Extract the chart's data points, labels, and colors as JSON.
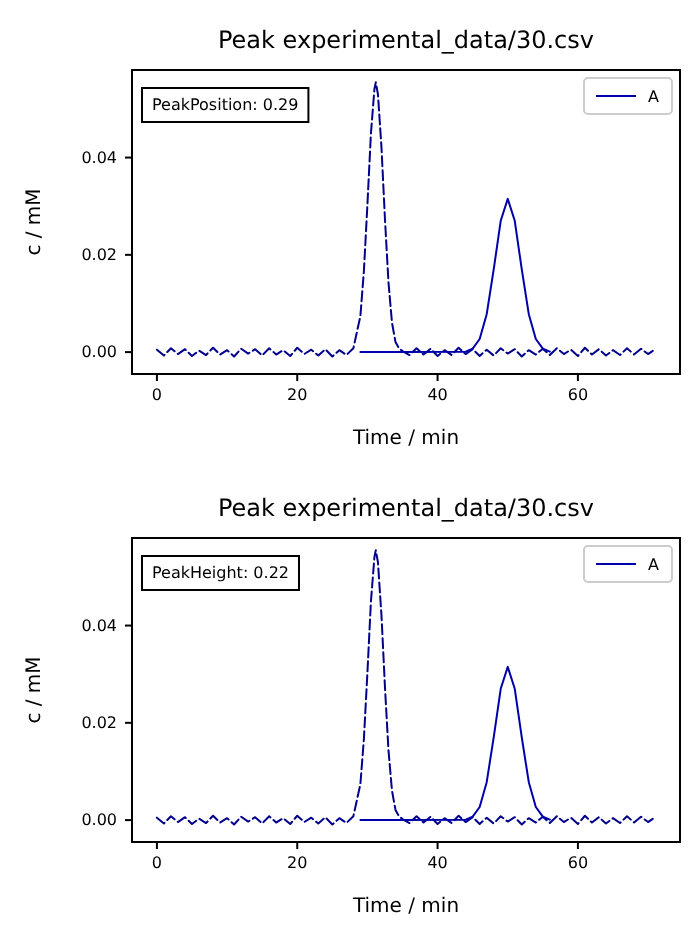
{
  "chart_data": [
    {
      "type": "line",
      "title": "Peak experimental_data/30.csv",
      "xlabel": "Time / min",
      "ylabel": "c / mM",
      "annotations": [
        "PeakPosition: 0.29"
      ],
      "xlim": [
        -3.55,
        74.55
      ],
      "ylim": [
        -0.0045,
        0.058
      ],
      "xticks": [
        0,
        20,
        40,
        60
      ],
      "yticks": [
        {
          "value": 0,
          "label": "0.00"
        },
        {
          "value": 0.02,
          "label": "0.02"
        },
        {
          "value": 0.04,
          "label": "0.04"
        }
      ],
      "grid": false,
      "legend": "top right",
      "marker": "none",
      "series": [
        {
          "color": "#00008b",
          "line_style": "dashed",
          "x": [
            0,
            1,
            2,
            3,
            4,
            5,
            6,
            7,
            8,
            9,
            10,
            11,
            12,
            13,
            14,
            15,
            16,
            17,
            18,
            19,
            20,
            21,
            22,
            23,
            24,
            25,
            26,
            27,
            28,
            29,
            29.5,
            30,
            30.5,
            31,
            31.2,
            31.5,
            32,
            32.5,
            33,
            33.5,
            34,
            34.5,
            35,
            36,
            37,
            38,
            39,
            40,
            41,
            42,
            43,
            44,
            45,
            46,
            47,
            48,
            49,
            50,
            51,
            52,
            53,
            54,
            55,
            56,
            57,
            58,
            59,
            60,
            61,
            62,
            63,
            64,
            65,
            66,
            67,
            68,
            69,
            70,
            71
          ],
          "values": [
            0.0005,
            -0.0007,
            0.0008,
            -0.0004,
            0.0006,
            -0.0008,
            0.0003,
            -0.0006,
            0.0009,
            -0.0005,
            0.0004,
            -0.0009,
            0.0007,
            -0.0003,
            0.0006,
            -0.0007,
            0.0008,
            -0.0005,
            0.0004,
            -0.0008,
            0.0009,
            -0.0004,
            0.0005,
            -0.0007,
            0.0006,
            -0.0009,
            0.0004,
            -0.0006,
            0.0008,
            0.0074,
            0.0167,
            0.0303,
            0.0449,
            0.0541,
            0.0555,
            0.053,
            0.0422,
            0.0274,
            0.0144,
            0.0061,
            0.0021,
            0.0008,
            0.0002,
            -0.0006,
            0.0008,
            -0.0005,
            0.0007,
            -0.0008,
            0.0004,
            -0.0006,
            0.0009,
            -0.0004,
            0.0006,
            -0.0008,
            0.0005,
            -0.0007,
            0.0008,
            -0.0003,
            0.0006,
            -0.0009,
            0.0004,
            -0.0005,
            0.0007,
            -0.0006,
            0.0008,
            -0.0004,
            0.0005,
            -0.0008,
            0.0009,
            -0.0005,
            0.0006,
            -0.0007,
            0.0004,
            -0.0006,
            0.0008,
            -0.0005,
            0.0007,
            -0.0004,
            0.0006
          ]
        },
        {
          "name": "A",
          "color": "#0000aa",
          "line_style": "solid",
          "x": [
            29,
            35,
            44,
            45,
            46,
            47,
            48,
            49,
            50,
            51,
            52,
            53,
            54,
            55,
            56
          ],
          "values": [
            0,
            0,
            0.0001,
            0.0007,
            0.0027,
            0.0078,
            0.017,
            0.027,
            0.0315,
            0.027,
            0.017,
            0.0078,
            0.0027,
            0.0007,
            0.0001
          ]
        }
      ]
    },
    {
      "type": "line",
      "title": "Peak experimental_data/30.csv",
      "xlabel": "Time / min",
      "ylabel": "c / mM",
      "annotations": [
        "PeakHeight: 0.22"
      ],
      "xlim": [
        -3.55,
        74.55
      ],
      "ylim": [
        -0.0045,
        0.058
      ],
      "xticks": [
        0,
        20,
        40,
        60
      ],
      "yticks": [
        {
          "value": 0,
          "label": "0.00"
        },
        {
          "value": 0.02,
          "label": "0.02"
        },
        {
          "value": 0.04,
          "label": "0.04"
        }
      ],
      "grid": false,
      "legend": "top right",
      "marker": "none",
      "series": [
        {
          "color": "#00008b",
          "line_style": "dashed",
          "x": [
            0,
            1,
            2,
            3,
            4,
            5,
            6,
            7,
            8,
            9,
            10,
            11,
            12,
            13,
            14,
            15,
            16,
            17,
            18,
            19,
            20,
            21,
            22,
            23,
            24,
            25,
            26,
            27,
            28,
            29,
            29.5,
            30,
            30.5,
            31,
            31.2,
            31.5,
            32,
            32.5,
            33,
            33.5,
            34,
            34.5,
            35,
            36,
            37,
            38,
            39,
            40,
            41,
            42,
            43,
            44,
            45,
            46,
            47,
            48,
            49,
            50,
            51,
            52,
            53,
            54,
            55,
            56,
            57,
            58,
            59,
            60,
            61,
            62,
            63,
            64,
            65,
            66,
            67,
            68,
            69,
            70,
            71
          ],
          "values": [
            0.0005,
            -0.0007,
            0.0008,
            -0.0004,
            0.0006,
            -0.0008,
            0.0003,
            -0.0006,
            0.0009,
            -0.0005,
            0.0004,
            -0.0009,
            0.0007,
            -0.0003,
            0.0006,
            -0.0007,
            0.0008,
            -0.0005,
            0.0004,
            -0.0008,
            0.0009,
            -0.0004,
            0.0005,
            -0.0007,
            0.0006,
            -0.0009,
            0.0004,
            -0.0006,
            0.0008,
            0.0074,
            0.0167,
            0.0303,
            0.0449,
            0.0541,
            0.0555,
            0.053,
            0.0422,
            0.0274,
            0.0144,
            0.0061,
            0.0021,
            0.0008,
            0.0002,
            -0.0006,
            0.0008,
            -0.0005,
            0.0007,
            -0.0008,
            0.0004,
            -0.0006,
            0.0009,
            -0.0004,
            0.0006,
            -0.0008,
            0.0005,
            -0.0007,
            0.0008,
            -0.0003,
            0.0006,
            -0.0009,
            0.0004,
            -0.0005,
            0.0007,
            -0.0006,
            0.0008,
            -0.0004,
            0.0005,
            -0.0008,
            0.0009,
            -0.0005,
            0.0006,
            -0.0007,
            0.0004,
            -0.0006,
            0.0008,
            -0.0005,
            0.0007,
            -0.0004,
            0.0006
          ]
        },
        {
          "name": "A",
          "color": "#0000aa",
          "line_style": "solid",
          "x": [
            29,
            35,
            44,
            45,
            46,
            47,
            48,
            49,
            50,
            51,
            52,
            53,
            54,
            55,
            56
          ],
          "values": [
            0,
            0,
            0.0001,
            0.0007,
            0.0027,
            0.0078,
            0.017,
            0.027,
            0.0315,
            0.027,
            0.017,
            0.0078,
            0.0027,
            0.0007,
            0.0001
          ]
        }
      ]
    }
  ]
}
